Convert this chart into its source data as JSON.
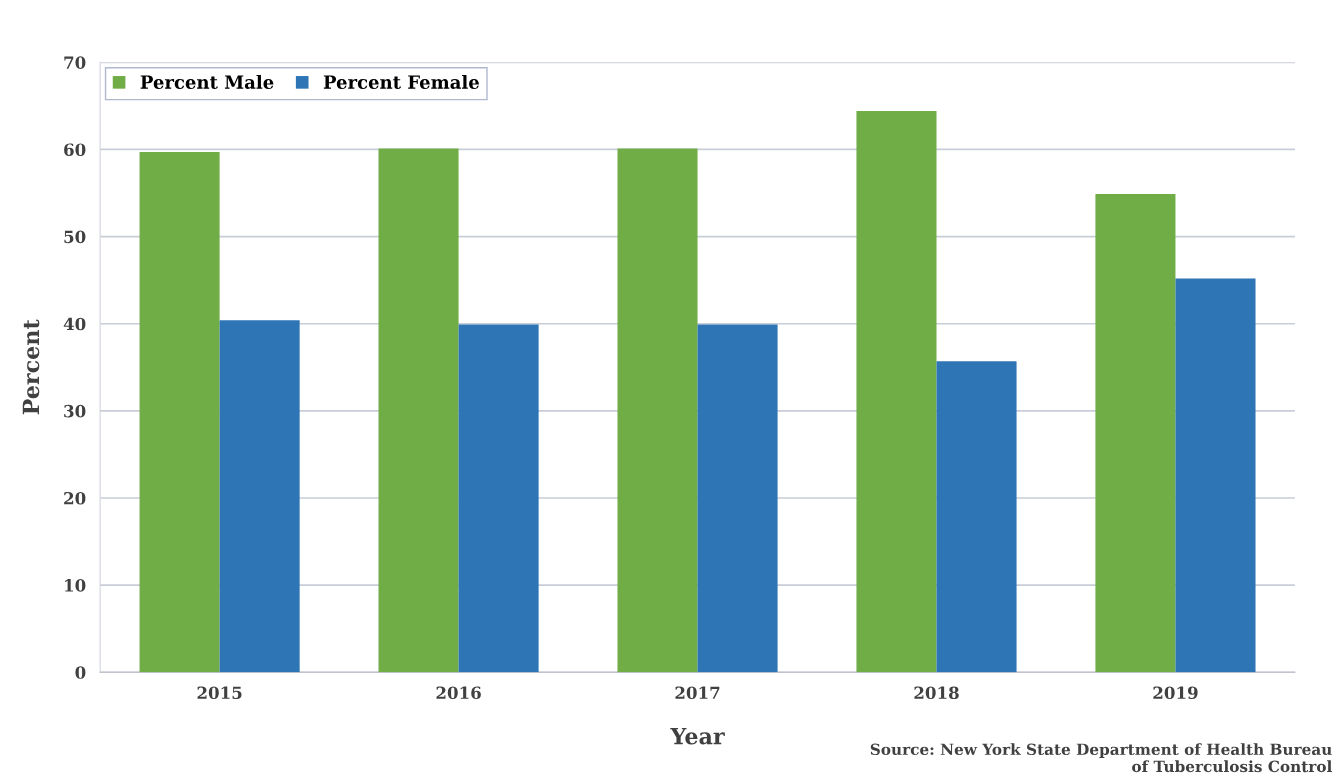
{
  "chart_data": {
    "type": "bar",
    "xlabel": "Year",
    "ylabel": "Percent",
    "categories": [
      "2015",
      "2016",
      "2017",
      "2018",
      "2019"
    ],
    "series": [
      {
        "name": "Percent Male",
        "color": "#70ad47",
        "values": [
          59.7,
          60.1,
          60.1,
          64.4,
          54.9
        ]
      },
      {
        "name": "Percent Female",
        "color": "#2e75b6",
        "values": [
          40.4,
          39.9,
          39.9,
          35.7,
          45.2
        ]
      }
    ],
    "ylim": [
      0,
      70
    ],
    "yticks": [
      0,
      10,
      20,
      30,
      40,
      50,
      60,
      70
    ],
    "grid": "y",
    "legend": "top left",
    "annotations": [
      "Source: New York State Department of Health Bureau\nof Tuberculosis Control"
    ]
  }
}
